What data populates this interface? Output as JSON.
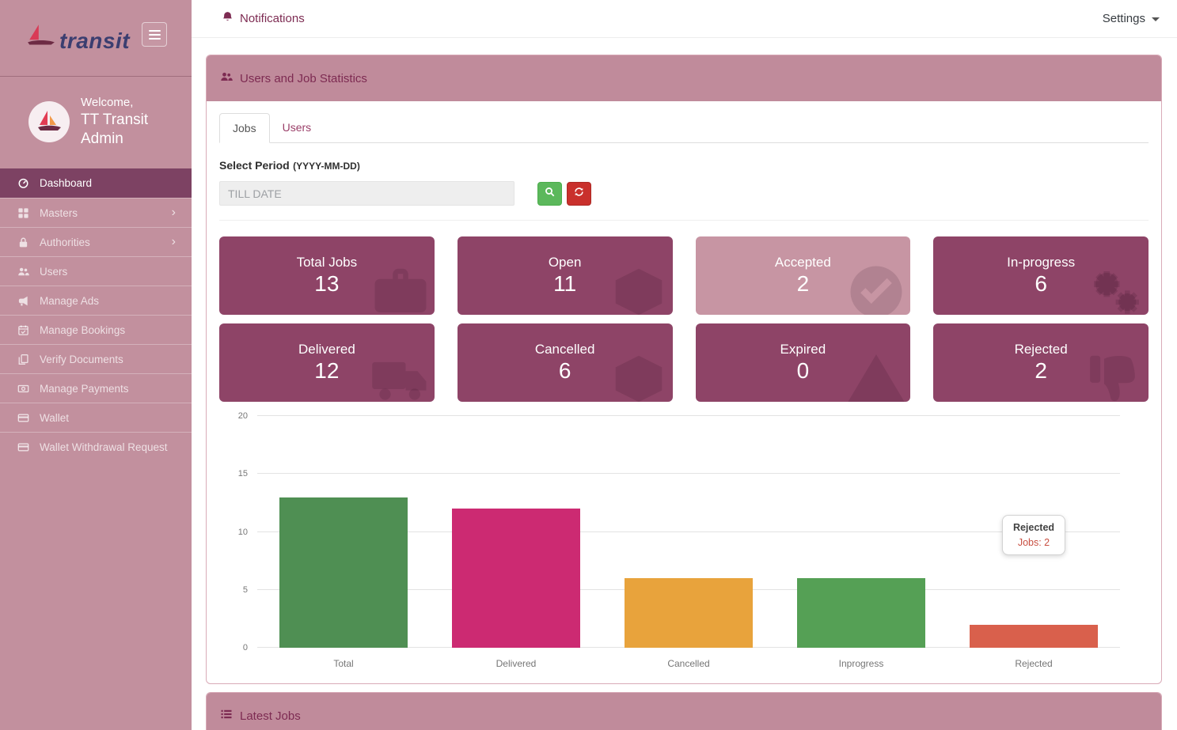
{
  "sidebar": {
    "logo_text": "transit",
    "welcome": {
      "greeting": "Welcome,",
      "name": "TT Transit Admin"
    },
    "items": [
      {
        "label": "Dashboard",
        "icon": "dashboard-icon",
        "active": true,
        "has_submenu": false
      },
      {
        "label": "Masters",
        "icon": "grid-icon",
        "active": false,
        "has_submenu": true
      },
      {
        "label": "Authorities",
        "icon": "lock-icon",
        "active": false,
        "has_submenu": true
      },
      {
        "label": "Users",
        "icon": "users-icon",
        "active": false,
        "has_submenu": false
      },
      {
        "label": "Manage Ads",
        "icon": "megaphone-icon",
        "active": false,
        "has_submenu": false
      },
      {
        "label": "Manage Bookings",
        "icon": "calendar-check-icon",
        "active": false,
        "has_submenu": false
      },
      {
        "label": "Verify Documents",
        "icon": "copy-icon",
        "active": false,
        "has_submenu": false
      },
      {
        "label": "Manage Payments",
        "icon": "money-icon",
        "active": false,
        "has_submenu": false
      },
      {
        "label": "Wallet",
        "icon": "credit-card-icon",
        "active": false,
        "has_submenu": false
      },
      {
        "label": "Wallet Withdrawal Request",
        "icon": "credit-card-icon",
        "active": false,
        "has_submenu": false
      }
    ]
  },
  "header": {
    "notifications_label": "Notifications",
    "settings_label": "Settings"
  },
  "stats_panel": {
    "title": "Users and Job Statistics",
    "tabs": [
      {
        "label": "Jobs",
        "active": true
      },
      {
        "label": "Users",
        "active": false
      }
    ],
    "filter": {
      "label": "Select Period",
      "format_hint": "(YYYY-MM-DD)",
      "placeholder": "TILL DATE",
      "value": ""
    },
    "cards": [
      {
        "label": "Total Jobs",
        "value": "13",
        "variant": "dark",
        "icon": "briefcase-icon"
      },
      {
        "label": "Open",
        "value": "11",
        "variant": "dark",
        "icon": "box-icon"
      },
      {
        "label": "Accepted",
        "value": "2",
        "variant": "light",
        "icon": "check-circle-icon"
      },
      {
        "label": "In-progress",
        "value": "6",
        "variant": "dark",
        "icon": "gears-icon"
      },
      {
        "label": "Delivered",
        "value": "12",
        "variant": "dark",
        "icon": "truck-icon"
      },
      {
        "label": "Cancelled",
        "value": "6",
        "variant": "dark",
        "icon": "box-icon"
      },
      {
        "label": "Expired",
        "value": "0",
        "variant": "dark",
        "icon": "warning-icon"
      },
      {
        "label": "Rejected",
        "value": "2",
        "variant": "dark",
        "icon": "thumbs-down-icon"
      }
    ]
  },
  "chart_data": {
    "type": "bar",
    "title": "",
    "xlabel": "",
    "ylabel": "",
    "categories": [
      "Total",
      "Delivered",
      "Cancelled",
      "Inprogress",
      "Rejected"
    ],
    "values": [
      13,
      12,
      6,
      6,
      2
    ],
    "bar_colors": [
      "#4f8f53",
      "#cc2a72",
      "#e8a33c",
      "#55a055",
      "#d9604c"
    ],
    "ylim": [
      0,
      20
    ],
    "yticks": [
      0,
      5,
      10,
      15,
      20
    ],
    "grid": true,
    "legend": false,
    "tooltip": {
      "category": "Rejected",
      "title": "Rejected",
      "text": "Jobs: 2"
    }
  },
  "latest_jobs_panel": {
    "title": "Latest Jobs"
  },
  "colors": {
    "sidebar_bg": "#c2909e",
    "sidebar_active_bg": "#7d4263",
    "panel_header_bg": "#c08b9b",
    "panel_border": "#d9abb8",
    "maroon_text": "#7d2b52",
    "stat_card_bg": "#8e4467",
    "stat_card_light_bg": "#c795a3",
    "tab_link": "#9a3e68",
    "search_button": "#5cb85c",
    "refresh_button": "#c9302c",
    "logo_text_color": "#3b3e70"
  }
}
